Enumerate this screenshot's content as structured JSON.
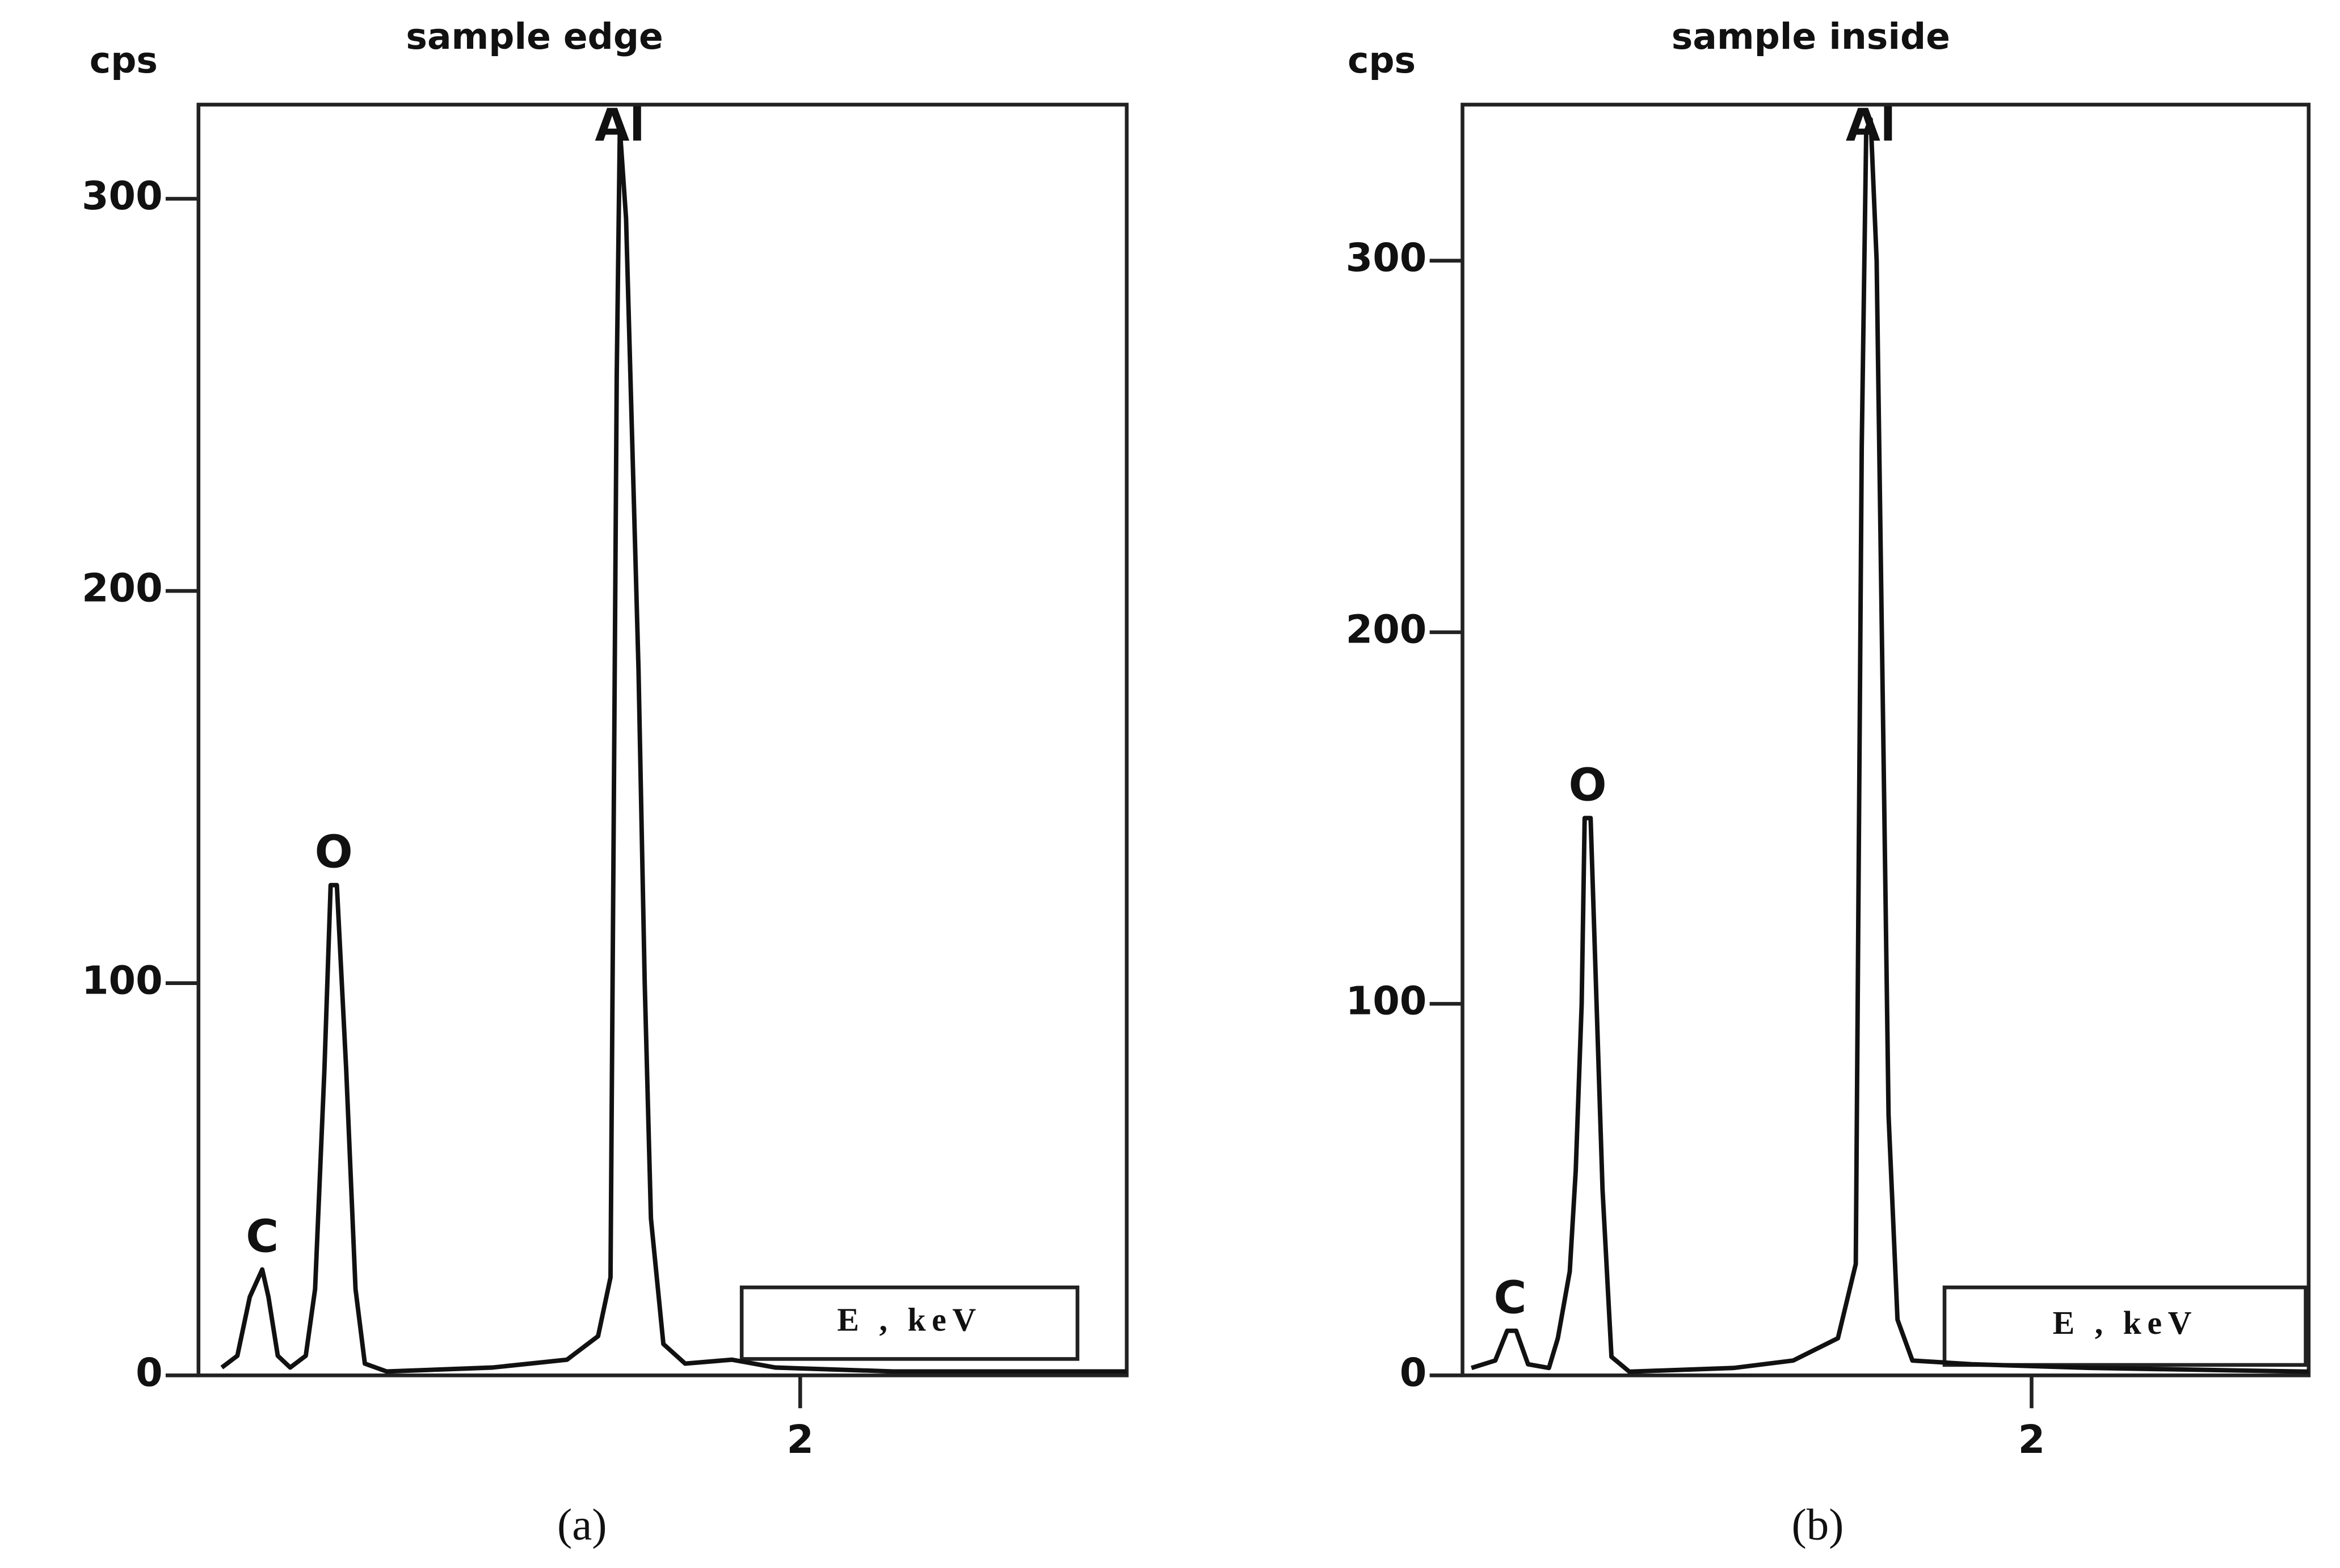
{
  "chart_data": [
    {
      "type": "line",
      "title": "sample edge",
      "y_label": "cps",
      "x_label": "E , keV",
      "caption": "(a)",
      "xlim": [
        0.065,
        3.05
      ],
      "ylim": [
        0,
        324
      ],
      "xticks": [
        2
      ],
      "yticks": [
        0,
        100,
        200,
        300
      ],
      "annotations": [
        {
          "text": "C",
          "x": 0.27
        },
        {
          "text": "O",
          "x": 0.5
        },
        {
          "text": "Al",
          "x": 1.42
        }
      ],
      "series": [
        {
          "color": "#111111",
          "x": [
            0.14,
            0.19,
            0.23,
            0.27,
            0.29,
            0.32,
            0.36,
            0.41,
            0.44,
            0.47,
            0.49,
            0.51,
            0.54,
            0.57,
            0.6,
            0.67,
            1.01,
            1.25,
            1.35,
            1.39,
            1.4,
            1.41,
            1.42,
            1.44,
            1.48,
            1.5,
            1.52,
            1.56,
            1.63,
            1.78,
            1.92,
            2.3,
            3.05
          ],
          "values": [
            2,
            5,
            20,
            27,
            20,
            5,
            2,
            5,
            22,
            78,
            125,
            125,
            78,
            22,
            3,
            1,
            2,
            4,
            10,
            25,
            138,
            255,
            318,
            295,
            180,
            100,
            40,
            8,
            3,
            4,
            2,
            1,
            1
          ]
        }
      ]
    },
    {
      "type": "line",
      "title": "sample inside",
      "y_label": "cps",
      "x_label": "E , keV",
      "caption": "(b)",
      "xlim": [
        0.09,
        2.93
      ],
      "ylim": [
        0,
        342
      ],
      "xticks": [
        2
      ],
      "yticks": [
        0,
        100,
        200,
        300
      ],
      "annotations": [
        {
          "text": "C",
          "x": 0.25
        },
        {
          "text": "O",
          "x": 0.51
        },
        {
          "text": "Al",
          "x": 1.46
        }
      ],
      "series": [
        {
          "color": "#111111",
          "x": [
            0.12,
            0.2,
            0.24,
            0.27,
            0.31,
            0.38,
            0.41,
            0.45,
            0.47,
            0.49,
            0.5,
            0.52,
            0.54,
            0.56,
            0.59,
            0.65,
            1.0,
            1.2,
            1.35,
            1.41,
            1.42,
            1.43,
            1.445,
            1.46,
            1.48,
            1.5,
            1.52,
            1.55,
            1.6,
            1.8,
            2.2,
            2.93
          ],
          "values": [
            2,
            4,
            12,
            12,
            3,
            2,
            10,
            28,
            55,
            100,
            150,
            150,
            100,
            50,
            5,
            1,
            2,
            4,
            10,
            30,
            140,
            250,
            335,
            338,
            300,
            185,
            70,
            15,
            4,
            3,
            2,
            1
          ]
        }
      ]
    }
  ]
}
